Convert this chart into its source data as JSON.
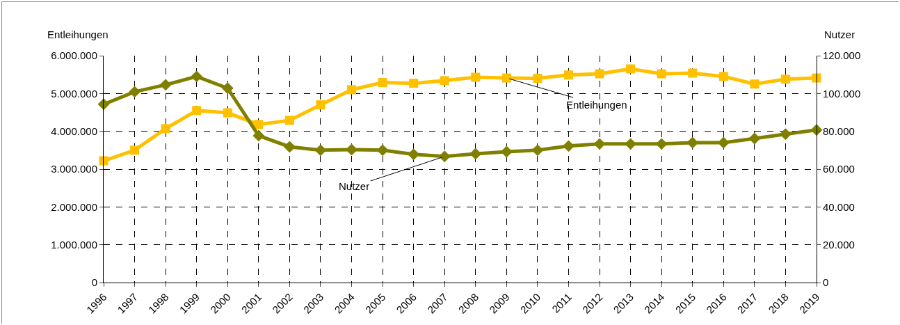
{
  "chart_data": {
    "type": "line",
    "ylabel": "Entleihungen",
    "y2label": "Nutzer",
    "categories": [
      "1996",
      "1997",
      "1998",
      "1999",
      "2000",
      "2001",
      "2002",
      "2003",
      "2004",
      "2005",
      "2006",
      "2007",
      "2008",
      "2009",
      "2010",
      "2011",
      "2012",
      "2013",
      "2014",
      "2015",
      "2016",
      "2017",
      "2018",
      "2019"
    ],
    "series": [
      {
        "color": "#ffc000",
        "marker": "square",
        "values": [
          3220000,
          3500000,
          4070000,
          4550000,
          4490000,
          4180000,
          4290000,
          4700000,
          5100000,
          5290000,
          5270000,
          5340000,
          5430000,
          5410000,
          5400000,
          5490000,
          5520000,
          5650000,
          5520000,
          5540000,
          5450000,
          5250000,
          5380000,
          5410000
        ]
      },
      {
        "color": "#808000",
        "marker": "diamond",
        "axis": "y2",
        "values": [
          94300,
          100900,
          104600,
          109000,
          102800,
          77700,
          71800,
          70000,
          70300,
          70000,
          67800,
          66700,
          68100,
          69200,
          70000,
          72200,
          73300,
          73300,
          73300,
          74000,
          74000,
          76200,
          78500,
          80700
        ]
      }
    ],
    "annotations": [
      {
        "text": "Entleihungen",
        "x": "2009",
        "y": 5410000
      },
      {
        "text": "Nutzer",
        "x": "2007",
        "y": 3335000
      }
    ],
    "ylim": [
      0,
      6000000
    ],
    "yticks": [
      0,
      {
        "value": 1000000,
        "label": "1.000.000"
      },
      {
        "value": 2000000,
        "label": "2.000.000"
      },
      {
        "value": 3000000,
        "label": "3.000.000"
      },
      {
        "value": 4000000,
        "label": "4.000.000"
      },
      {
        "value": 5000000,
        "label": "5.000.000"
      },
      {
        "value": 6000000,
        "label": "6.000.000"
      }
    ],
    "y2lim": [
      0,
      120000
    ],
    "y2ticks": [
      0,
      {
        "value": 20000,
        "label": "20.000"
      },
      {
        "value": 40000,
        "label": "40.000"
      },
      {
        "value": 60000,
        "label": "60.000"
      },
      {
        "value": 80000,
        "label": "80.000"
      },
      {
        "value": 100000,
        "label": "100.000"
      },
      {
        "value": 120000,
        "label": "120.000"
      }
    ],
    "grid": true,
    "line_style": "solid"
  }
}
